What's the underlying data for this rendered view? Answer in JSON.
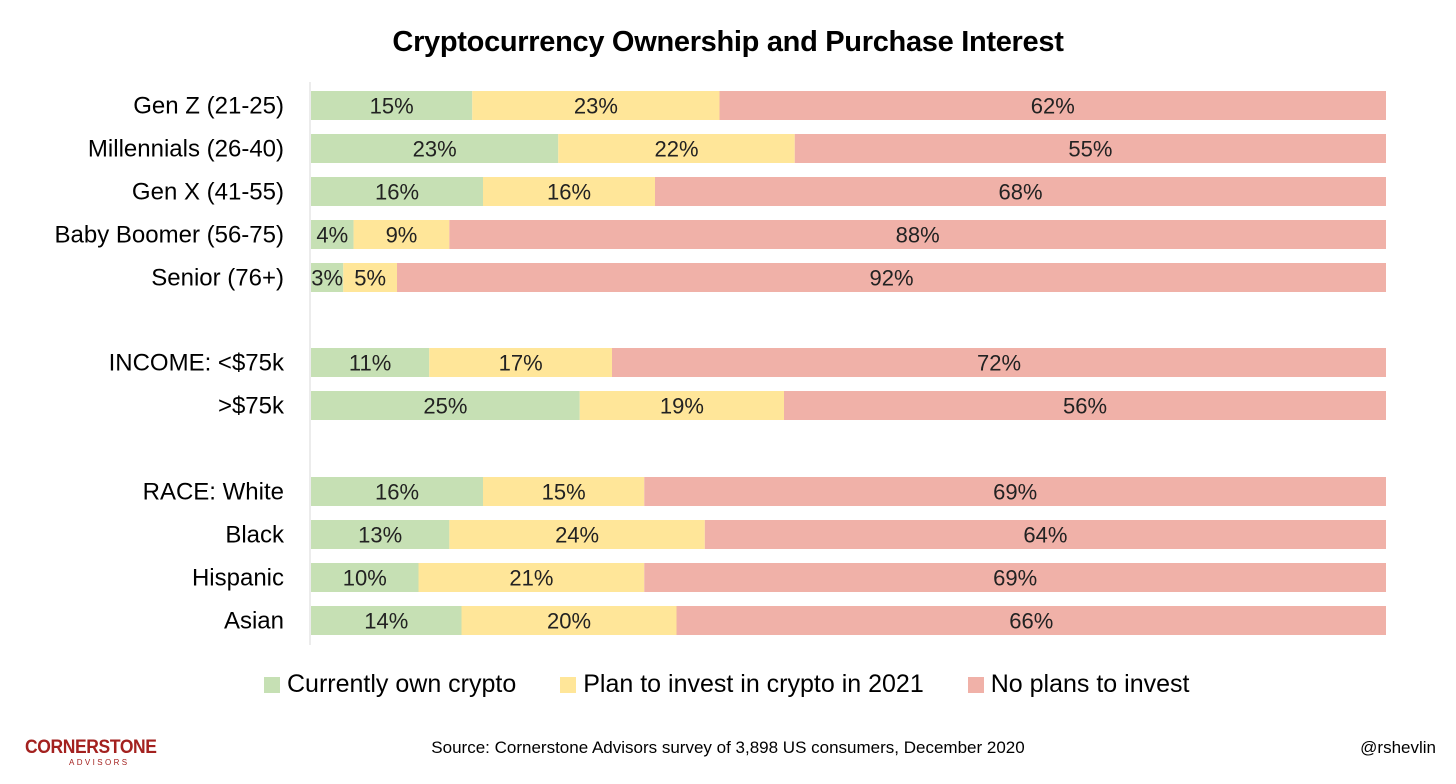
{
  "chart_data": {
    "type": "bar",
    "orientation": "horizontal",
    "stacked": true,
    "title": "Cryptocurrency Ownership and Purchase Interest",
    "categories": [
      "Gen Z (21-25)",
      "Millennials (26-40)",
      "Gen X (41-55)",
      "Baby Boomer (56-75)",
      "Senior (76+)",
      "INCOME: <$75k",
      ">$75k",
      "RACE: White",
      "Black",
      "Hispanic",
      "Asian"
    ],
    "groups": [
      [
        0,
        1,
        2,
        3,
        4
      ],
      [
        5,
        6
      ],
      [
        7,
        8,
        9,
        10
      ]
    ],
    "series": [
      {
        "name": "Currently own crypto",
        "color": "#c6e0b4",
        "values": [
          15,
          23,
          16,
          4,
          3,
          11,
          25,
          16,
          13,
          10,
          14
        ]
      },
      {
        "name": "Plan to invest in crypto in 2021",
        "color": "#ffe699",
        "values": [
          23,
          22,
          16,
          9,
          5,
          17,
          19,
          15,
          24,
          21,
          20
        ]
      },
      {
        "name": "No plans to invest",
        "color": "#f0b1a8",
        "values": [
          62,
          55,
          68,
          88,
          92,
          72,
          56,
          69,
          64,
          69,
          66
        ]
      }
    ],
    "value_suffix": "%",
    "legend": "bottom",
    "grid": false
  },
  "source": "Source: Cornerstone Advisors survey of 3,898 US consumers, December 2020",
  "handle": "@rshevlin",
  "brand": {
    "name": "CORNERSTONE",
    "sub": "ADVISORS",
    "color": "#a3211f"
  }
}
